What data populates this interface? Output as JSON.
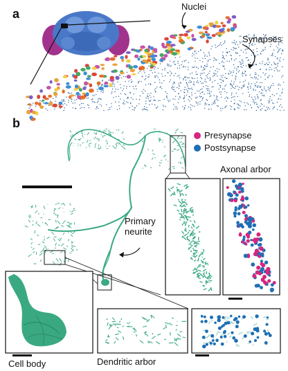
{
  "panels": {
    "a": {
      "letter": "a",
      "nuclei_label": "Nuclei",
      "synapses_label": "Synapses"
    },
    "b": {
      "letter": "b",
      "legend": [
        {
          "label": "Presynapse",
          "color": "#d6267f"
        },
        {
          "label": "Postsynapse",
          "color": "#1f6fb4"
        }
      ],
      "axonal_arbor_label": "Axonal arbor",
      "primary_neurite_label_line1": "Primary",
      "primary_neurite_label_line2": "neurite",
      "cell_body_label": "Cell body",
      "dendritic_arbor_label": "Dendritic arbor"
    }
  },
  "colors": {
    "neuron_green": "#3aa982",
    "neuron_dark": "#1f7d5c",
    "synapse_blue": "#2a5f95",
    "brain_blue": "#4a78c8",
    "brain_magenta": "#a2338d"
  }
}
